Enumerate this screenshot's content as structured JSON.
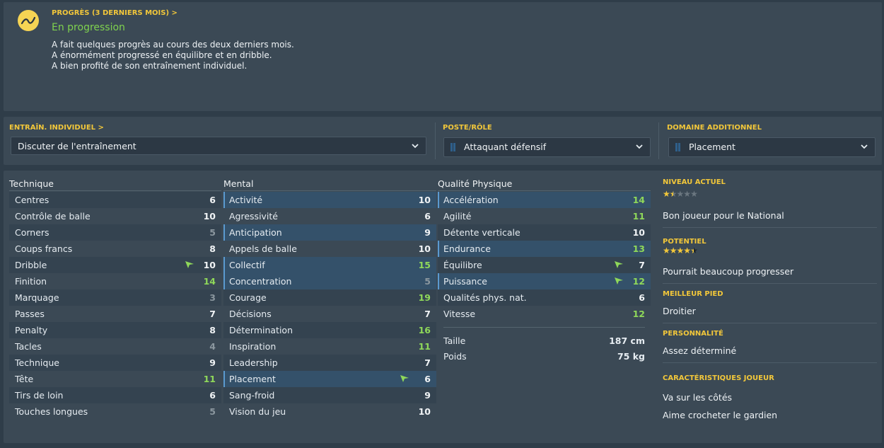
{
  "progress": {
    "title": "PROGRÈS (3 DERNIERS MOIS) >",
    "status": "En progression",
    "lines": [
      "A fait quelques progrès au cours des deux derniers mois.",
      "A énormément progressé en équilibre et en dribble.",
      "A bien profité de son entraînement individuel."
    ],
    "icon": "trend-up-icon",
    "icon_color": "#f6d454",
    "status_color": "#7fd24e"
  },
  "training": {
    "individual_label": "ENTRAÎN. INDIVIDUEL >",
    "individual_value": "Discuter de l'entraînement",
    "role_label": "POSTE/RÔLE",
    "role_value": "Attaquant défensif",
    "extra_label": "DOMAINE ADDITIONNEL",
    "extra_value": "Placement"
  },
  "colors": {
    "accent_yellow": "#f2c73a",
    "value_high": "#8fd85a",
    "value_mid": "#f0f3f5",
    "value_low": "#8b979f",
    "highlight_row": "#34516a",
    "arrow_green": "#8fd85a"
  },
  "technique": {
    "header": "Technique",
    "rows": [
      {
        "name": "Centres",
        "value": "6",
        "tone": "mid"
      },
      {
        "name": "Contrôle de balle",
        "value": "10",
        "tone": "mid"
      },
      {
        "name": "Corners",
        "value": "5",
        "tone": "low"
      },
      {
        "name": "Coups francs",
        "value": "8",
        "tone": "mid"
      },
      {
        "name": "Dribble",
        "value": "10",
        "tone": "mid",
        "arrow": true
      },
      {
        "name": "Finition",
        "value": "14",
        "tone": "high"
      },
      {
        "name": "Marquage",
        "value": "3",
        "tone": "low"
      },
      {
        "name": "Passes",
        "value": "7",
        "tone": "mid"
      },
      {
        "name": "Penalty",
        "value": "8",
        "tone": "mid"
      },
      {
        "name": "Tacles",
        "value": "4",
        "tone": "low"
      },
      {
        "name": "Technique",
        "value": "9",
        "tone": "mid"
      },
      {
        "name": "Tête",
        "value": "11",
        "tone": "high"
      },
      {
        "name": "Tirs de loin",
        "value": "6",
        "tone": "mid"
      },
      {
        "name": "Touches longues",
        "value": "5",
        "tone": "low"
      }
    ]
  },
  "mental": {
    "header": "Mental",
    "rows": [
      {
        "name": "Activité",
        "value": "10",
        "tone": "mid",
        "hl": true
      },
      {
        "name": "Agressivité",
        "value": "6",
        "tone": "mid"
      },
      {
        "name": "Anticipation",
        "value": "9",
        "tone": "mid",
        "hl": true
      },
      {
        "name": "Appels de balle",
        "value": "10",
        "tone": "mid"
      },
      {
        "name": "Collectif",
        "value": "15",
        "tone": "high",
        "hl": true
      },
      {
        "name": "Concentration",
        "value": "5",
        "tone": "low",
        "hl": true
      },
      {
        "name": "Courage",
        "value": "19",
        "tone": "high"
      },
      {
        "name": "Décisions",
        "value": "7",
        "tone": "mid"
      },
      {
        "name": "Détermination",
        "value": "16",
        "tone": "high"
      },
      {
        "name": "Inspiration",
        "value": "11",
        "tone": "high"
      },
      {
        "name": "Leadership",
        "value": "7",
        "tone": "mid"
      },
      {
        "name": "Placement",
        "value": "6",
        "tone": "mid",
        "hl": true,
        "arrow": true
      },
      {
        "name": "Sang-froid",
        "value": "9",
        "tone": "mid"
      },
      {
        "name": "Vision du jeu",
        "value": "10",
        "tone": "mid"
      }
    ]
  },
  "physical": {
    "header": "Qualité Physique",
    "rows": [
      {
        "name": "Accélération",
        "value": "14",
        "tone": "high",
        "hl": true
      },
      {
        "name": "Agilité",
        "value": "11",
        "tone": "high"
      },
      {
        "name": "Détente verticale",
        "value": "10",
        "tone": "mid"
      },
      {
        "name": "Endurance",
        "value": "13",
        "tone": "high",
        "hl": true
      },
      {
        "name": "Équilibre",
        "value": "7",
        "tone": "mid",
        "arrow": true
      },
      {
        "name": "Puissance",
        "value": "12",
        "tone": "high",
        "hl": true,
        "arrow": true
      },
      {
        "name": "Qualités phys. nat.",
        "value": "6",
        "tone": "mid"
      },
      {
        "name": "Vitesse",
        "value": "12",
        "tone": "high"
      }
    ],
    "height_label": "Taille",
    "height_value": "187 cm",
    "weight_label": "Poids",
    "weight_value": "75 kg"
  },
  "side": {
    "current_label": "NIVEAU ACTUEL",
    "current_stars": 1.5,
    "current_text": "Bon joueur pour le National",
    "potential_label": "POTENTIEL",
    "potential_stars": 4.5,
    "potential_text": "Pourrait beaucoup progresser",
    "foot_label": "MEILLEUR PIED",
    "foot_value": "Droitier",
    "personality_label": "PERSONNALITÉ",
    "personality_value": "Assez déterminé",
    "traits_label": "CARACTÉRISTIQUES JOUEUR",
    "traits": [
      "Va sur les côtés",
      "Aime crocheter le gardien"
    ]
  }
}
